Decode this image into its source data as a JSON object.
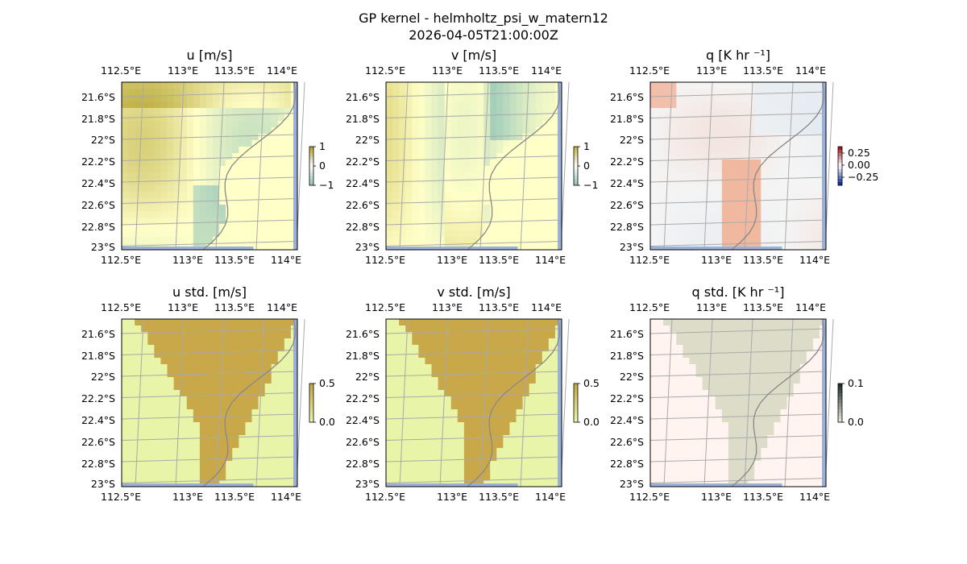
{
  "suptitle": "GP kernel - helmholtz_psi_w_matern12",
  "subtitle": "2026-04-05T21:00:00Z",
  "chart_data": [
    {
      "type": "heatmap",
      "title": "u [m/s]",
      "colorbar": {
        "ticks": [
          "1",
          "0",
          "−1"
        ],
        "ylim": [
          -1.3,
          1.3
        ]
      },
      "x_ticks": [
        "112.5°E",
        "113°E",
        "113.5°E",
        "114°E"
      ],
      "y_ticks": [
        "21.6°S",
        "21.8°S",
        "22°S",
        "22.2°S",
        "22.4°S",
        "22.6°S",
        "22.8°S",
        "23°S"
      ],
      "colors": {
        "background": "#ffffc8",
        "pos": "#b8a838",
        "neg": "#9ccaba"
      }
    },
    {
      "type": "heatmap",
      "title": "v [m/s]",
      "colorbar": {
        "ticks": [
          "1",
          "0",
          "−1"
        ],
        "ylim": [
          -1.3,
          1.3
        ]
      },
      "x_ticks": [
        "112.5°E",
        "113°E",
        "113.5°E",
        "114°E"
      ],
      "y_ticks": [
        "21.6°S",
        "21.8°S",
        "22°S",
        "22.2°S",
        "22.4°S",
        "22.6°S",
        "22.8°S",
        "23°S"
      ],
      "colors": {
        "background": "#ffffc8",
        "pos": "#c8b848",
        "neg": "#9ccaba"
      }
    },
    {
      "type": "heatmap",
      "title": "q [K hr ⁻¹]",
      "colorbar": {
        "ticks": [
          "0.25",
          "0.00",
          "−0.25"
        ],
        "ylim": [
          -0.35,
          0.35
        ]
      },
      "x_ticks": [
        "112.5°E",
        "113°E",
        "113.5°E",
        "114°E"
      ],
      "y_ticks": [
        "21.6°S",
        "21.8°S",
        "22°S",
        "22.2°S",
        "22.4°S",
        "22.6°S",
        "22.8°S",
        "23°S"
      ],
      "colors": {
        "background": "#f4f4f4",
        "pos": "#f0a080",
        "neg": "#c8dcee"
      }
    },
    {
      "type": "heatmap",
      "title": "u std. [m/s]",
      "colorbar": {
        "ticks": [
          "0.5",
          "0.0"
        ],
        "ylim": [
          0,
          0.55
        ]
      },
      "x_ticks": [
        "112.5°E",
        "113°E",
        "113.5°E",
        "114°E"
      ],
      "y_ticks": [
        "21.6°S",
        "21.8°S",
        "22°S",
        "22.2°S",
        "22.4°S",
        "22.6°S",
        "22.8°S",
        "23°S"
      ],
      "colors": {
        "background": "#e8f4a8",
        "pos": "#c8a848",
        "neg": "#e8f4a8"
      }
    },
    {
      "type": "heatmap",
      "title": "v std. [m/s]",
      "colorbar": {
        "ticks": [
          "0.5",
          "0.0"
        ],
        "ylim": [
          0,
          0.55
        ]
      },
      "x_ticks": [
        "112.5°E",
        "113°E",
        "113.5°E",
        "114°E"
      ],
      "y_ticks": [
        "21.6°S",
        "21.8°S",
        "22°S",
        "22.2°S",
        "22.4°S",
        "22.6°S",
        "22.8°S",
        "23°S"
      ],
      "colors": {
        "background": "#e8f4a8",
        "pos": "#c8a848",
        "neg": "#e8f4a8"
      }
    },
    {
      "type": "heatmap",
      "title": "q std. [K hr ⁻¹]",
      "colorbar": {
        "ticks": [
          "0.1",
          "0.0"
        ],
        "ylim": [
          0,
          0.12
        ]
      },
      "x_ticks": [
        "112.5°E",
        "113°E",
        "113.5°E",
        "114°E"
      ],
      "y_ticks": [
        "21.6°S",
        "21.8°S",
        "22°S",
        "22.2°S",
        "22.4°S",
        "22.6°S",
        "22.8°S",
        "23°S"
      ],
      "colors": {
        "background": "#fff4f0",
        "pos": "#dcdcc8",
        "neg": "#fff4f0"
      }
    }
  ],
  "colors": {
    "frame": "#000000",
    "grid": "#aaaaaa",
    "coast": "#888888",
    "ocean": "#9ab0d8"
  }
}
